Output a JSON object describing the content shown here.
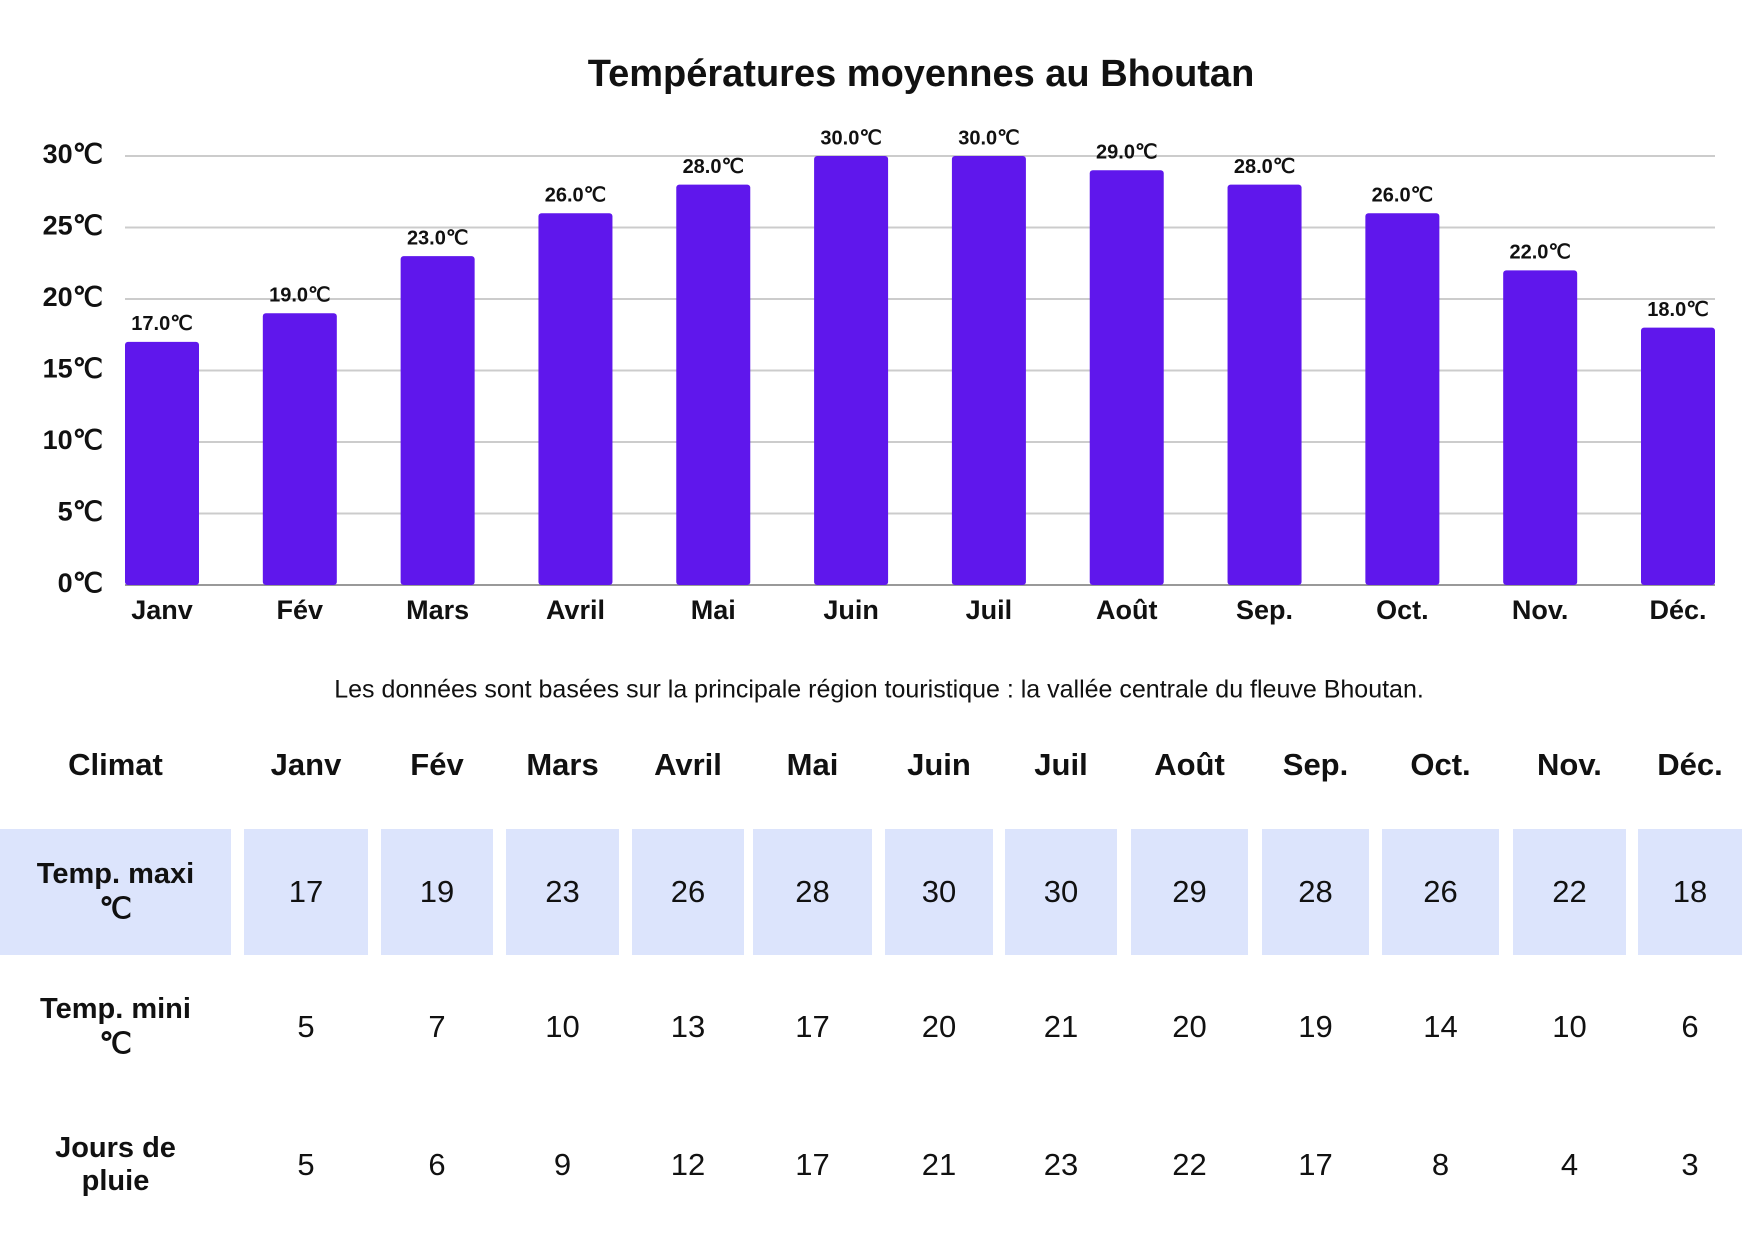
{
  "chart_data": {
    "type": "bar",
    "title": "Températures moyennes au Bhoutan",
    "categories": [
      "Janv",
      "Fév",
      "Mars",
      "Avril",
      "Mai",
      "Juin",
      "Juil",
      "Août",
      "Sep.",
      "Oct.",
      "Nov.",
      "Déc."
    ],
    "values": [
      17,
      19,
      23,
      26,
      28,
      30,
      30,
      29,
      28,
      26,
      22,
      18
    ],
    "value_labels": [
      "17.0℃",
      "19.0℃",
      "23.0℃",
      "26.0℃",
      "28.0℃",
      "30.0℃",
      "30.0℃",
      "29.0℃",
      "28.0℃",
      "26.0℃",
      "22.0℃",
      "18.0℃"
    ],
    "color": "#5f17ec",
    "ylim": [
      0,
      30
    ],
    "yticks": [
      {
        "value": 0,
        "label": "0℃"
      },
      {
        "value": 5,
        "label": "5℃"
      },
      {
        "value": 10,
        "label": "10℃"
      },
      {
        "value": 15,
        "label": "15℃"
      },
      {
        "value": 20,
        "label": "20℃"
      },
      {
        "value": 25,
        "label": "25℃"
      },
      {
        "value": 30,
        "label": "30℃"
      }
    ],
    "grid": true
  },
  "note": "Les données sont basées sur la principale région touristique : la vallée centrale du fleuve Bhoutan.",
  "table": {
    "header": [
      "Climat",
      "Janv",
      "Fév",
      "Mars",
      "Avril",
      "Mai",
      "Juin",
      "Juil",
      "Août",
      "Sep.",
      "Oct.",
      "Nov.",
      "Déc."
    ],
    "rows": [
      {
        "label": "Temp. maxi ℃",
        "values": [
          17,
          19,
          23,
          26,
          28,
          30,
          30,
          29,
          28,
          26,
          22,
          18
        ]
      },
      {
        "label": "Temp. mini ℃",
        "values": [
          5,
          7,
          10,
          13,
          17,
          20,
          21,
          20,
          19,
          14,
          10,
          6
        ]
      },
      {
        "label": "Jours de pluie",
        "values": [
          5,
          6,
          9,
          12,
          17,
          21,
          23,
          22,
          17,
          8,
          4,
          3
        ]
      }
    ]
  }
}
